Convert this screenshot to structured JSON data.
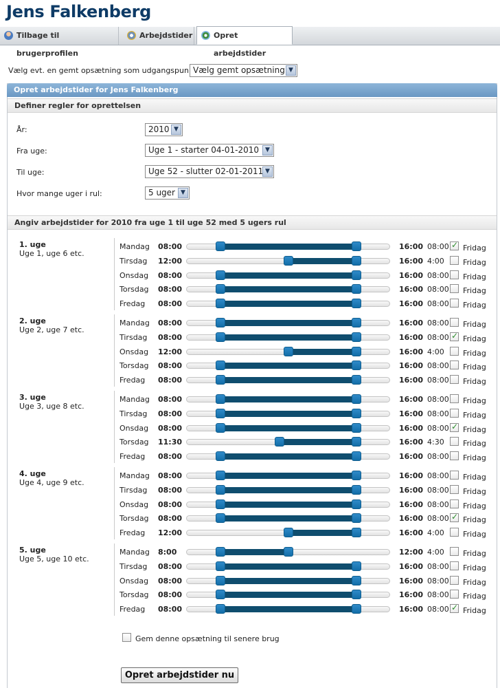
{
  "page": {
    "title": "Jens Falkenberg"
  },
  "tabs": [
    {
      "label": "Tilbage til brugerprofilen",
      "icon": "user-icon"
    },
    {
      "label": "Arbejdstider",
      "icon": "gear-icon"
    },
    {
      "label": "Opret arbejdstider",
      "icon": "add-icon",
      "active": true
    }
  ],
  "preset": {
    "label": "Vælg evt. en gemt opsætning som udgangspunkt:",
    "value": "Vælg gemt opsætning"
  },
  "panel": {
    "title": "Opret arbejdstider for Jens Falkenberg",
    "rules_heading": "Definer regler for oprettelsen",
    "fields": {
      "year": {
        "label": "År:",
        "value": "2010"
      },
      "from_week": {
        "label": "Fra uge:",
        "value": "Uge 1 - starter 04-01-2010"
      },
      "to_week": {
        "label": "Til uge:",
        "value": "Uge 52 - slutter 02-01-2011"
      },
      "rotation": {
        "label": "Hvor mange uger i rul:",
        "value": "5 uger"
      }
    },
    "schedule_heading": "Angiv arbejdstider for 2010 fra uge 1 til uge 52 med 5 ugers rul"
  },
  "colors": {
    "accent": "#0f4d6e",
    "handle": "#1f7cbf",
    "header": "#7aa5cf",
    "title": "#0e3b66"
  },
  "schedule": {
    "friday_label": "Fridag",
    "weeks": [
      {
        "title": "1. uge",
        "subtitle": "Uge 1, uge 6 etc.",
        "days": [
          {
            "name": "Mandag",
            "start": "08:00",
            "end": "16:00",
            "hours": "08:00",
            "friday": true
          },
          {
            "name": "Tirsdag",
            "start": "12:00",
            "end": "16:00",
            "hours": "4:00",
            "friday": false
          },
          {
            "name": "Onsdag",
            "start": "08:00",
            "end": "16:00",
            "hours": "08:00",
            "friday": false
          },
          {
            "name": "Torsdag",
            "start": "08:00",
            "end": "16:00",
            "hours": "08:00",
            "friday": false
          },
          {
            "name": "Fredag",
            "start": "08:00",
            "end": "16:00",
            "hours": "08:00",
            "friday": false
          }
        ]
      },
      {
        "title": "2. uge",
        "subtitle": "Uge 2, uge 7 etc.",
        "days": [
          {
            "name": "Mandag",
            "start": "08:00",
            "end": "16:00",
            "hours": "08:00",
            "friday": false
          },
          {
            "name": "Tirsdag",
            "start": "08:00",
            "end": "16:00",
            "hours": "08:00",
            "friday": true
          },
          {
            "name": "Onsdag",
            "start": "12:00",
            "end": "16:00",
            "hours": "4:00",
            "friday": false
          },
          {
            "name": "Torsdag",
            "start": "08:00",
            "end": "16:00",
            "hours": "08:00",
            "friday": false
          },
          {
            "name": "Fredag",
            "start": "08:00",
            "end": "16:00",
            "hours": "08:00",
            "friday": false
          }
        ]
      },
      {
        "title": "3. uge",
        "subtitle": "Uge 3, uge 8 etc.",
        "days": [
          {
            "name": "Mandag",
            "start": "08:00",
            "end": "16:00",
            "hours": "08:00",
            "friday": false
          },
          {
            "name": "Tirsdag",
            "start": "08:00",
            "end": "16:00",
            "hours": "08:00",
            "friday": false
          },
          {
            "name": "Onsdag",
            "start": "08:00",
            "end": "16:00",
            "hours": "08:00",
            "friday": true
          },
          {
            "name": "Torsdag",
            "start": "11:30",
            "end": "16:00",
            "hours": "4:30",
            "friday": false
          },
          {
            "name": "Fredag",
            "start": "08:00",
            "end": "16:00",
            "hours": "08:00",
            "friday": false
          }
        ]
      },
      {
        "title": "4. uge",
        "subtitle": "Uge 4, uge 9 etc.",
        "days": [
          {
            "name": "Mandag",
            "start": "08:00",
            "end": "16:00",
            "hours": "08:00",
            "friday": false
          },
          {
            "name": "Tirsdag",
            "start": "08:00",
            "end": "16:00",
            "hours": "08:00",
            "friday": false
          },
          {
            "name": "Onsdag",
            "start": "08:00",
            "end": "16:00",
            "hours": "08:00",
            "friday": false
          },
          {
            "name": "Torsdag",
            "start": "08:00",
            "end": "16:00",
            "hours": "08:00",
            "friday": true
          },
          {
            "name": "Fredag",
            "start": "12:00",
            "end": "16:00",
            "hours": "4:00",
            "friday": false
          }
        ]
      },
      {
        "title": "5. uge",
        "subtitle": "Uge 5, uge 10 etc.",
        "days": [
          {
            "name": "Mandag",
            "start": "8:00",
            "end": "12:00",
            "hours": "4:00",
            "friday": false
          },
          {
            "name": "Tirsdag",
            "start": "08:00",
            "end": "16:00",
            "hours": "08:00",
            "friday": false
          },
          {
            "name": "Onsdag",
            "start": "08:00",
            "end": "16:00",
            "hours": "08:00",
            "friday": false
          },
          {
            "name": "Torsdag",
            "start": "08:00",
            "end": "16:00",
            "hours": "08:00",
            "friday": false
          },
          {
            "name": "Fredag",
            "start": "08:00",
            "end": "16:00",
            "hours": "08:00",
            "friday": true
          }
        ]
      }
    ]
  },
  "save": {
    "label": "Gem denne opsætning til senere brug",
    "checked": false
  },
  "submit": {
    "label": "Opret arbejdstider nu"
  }
}
